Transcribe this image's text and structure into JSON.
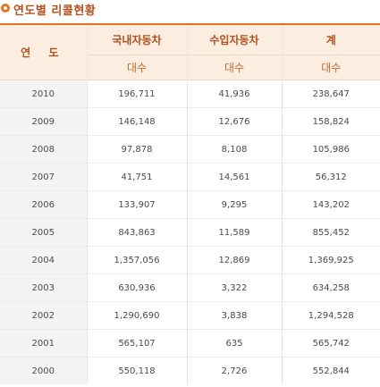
{
  "title": "연도별 리콜현황",
  "colors": {
    "accent": "#e8731f",
    "header_bg": "#fbeee0",
    "header_text": "#b4501c"
  },
  "table": {
    "year_header": "연 도",
    "headers": [
      "국내자동차",
      "수입자동차",
      "계"
    ],
    "subheaders": [
      "대수",
      "대수",
      "대수"
    ],
    "rows": [
      {
        "year": "2010",
        "domestic": "196,711",
        "imported": "41,936",
        "total": "238,647"
      },
      {
        "year": "2009",
        "domestic": "146,148",
        "imported": "12,676",
        "total": "158,824"
      },
      {
        "year": "2008",
        "domestic": "97,878",
        "imported": "8,108",
        "total": "105,986"
      },
      {
        "year": "2007",
        "domestic": "41,751",
        "imported": "14,561",
        "total": "56,312"
      },
      {
        "year": "2006",
        "domestic": "133,907",
        "imported": "9,295",
        "total": "143,202"
      },
      {
        "year": "2005",
        "domestic": "843,863",
        "imported": "11,589",
        "total": "855,452"
      },
      {
        "year": "2004",
        "domestic": "1,357,056",
        "imported": "12,869",
        "total": "1,369,925"
      },
      {
        "year": "2003",
        "domestic": "630,936",
        "imported": "3,322",
        "total": "634,258"
      },
      {
        "year": "2002",
        "domestic": "1,290,690",
        "imported": "3,838",
        "total": "1,294,528"
      },
      {
        "year": "2001",
        "domestic": "565,107",
        "imported": "635",
        "total": "565,742"
      },
      {
        "year": "2000",
        "domestic": "550,118",
        "imported": "2,726",
        "total": "552,844"
      }
    ]
  }
}
